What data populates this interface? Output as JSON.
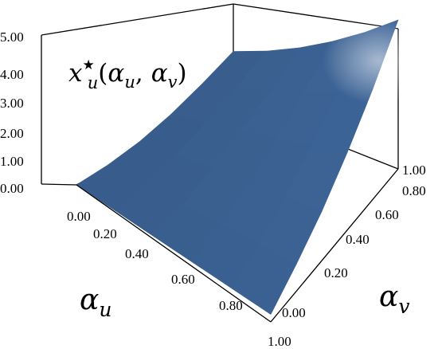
{
  "chart_data": {
    "type": "surface",
    "title": "x_u*(α_u, α_v)",
    "title_parts": {
      "main": "x",
      "sub": "u",
      "sup": "★",
      "paren_open": "(",
      "arg1": "α",
      "arg1_sub": "u",
      "comma": ",",
      "arg2": "α",
      "arg2_sub": "v",
      "paren_close": ")"
    },
    "xlabel": {
      "main": "α",
      "sub": "u"
    },
    "ylabel": {
      "main": "α",
      "sub": "v"
    },
    "xlim": [
      0,
      1
    ],
    "ylim": [
      0,
      1
    ],
    "zlim": [
      0,
      5
    ],
    "x_ticks": [
      "0.00",
      "0.20",
      "0.40",
      "0.60",
      "0.80",
      "1.00"
    ],
    "y_ticks": [
      "0.00",
      "0.20",
      "0.40",
      "0.60",
      "0.80",
      "1.00"
    ],
    "z_ticks": [
      "0.00",
      "1.00",
      "2.00",
      "3.00",
      "4.00",
      "5.00"
    ],
    "x_tick_values": [
      0,
      0.2,
      0.4,
      0.6,
      0.8,
      1.0
    ],
    "y_tick_values": [
      0,
      0.2,
      0.4,
      0.6,
      0.8,
      1.0
    ],
    "z_tick_values": [
      0,
      1,
      2,
      3,
      4,
      5
    ],
    "surface": {
      "x": [
        0,
        0.2,
        0.4,
        0.6,
        0.8,
        1.0
      ],
      "y": [
        0,
        0.2,
        0.4,
        0.6,
        0.8,
        1.0
      ],
      "z": [
        [
          0.0,
          0.12,
          0.35,
          0.72,
          1.2,
          1.75
        ],
        [
          0.05,
          0.3,
          0.65,
          1.1,
          1.6,
          2.2
        ],
        [
          0.1,
          0.45,
          0.9,
          1.45,
          2.05,
          2.75
        ],
        [
          0.15,
          0.6,
          1.15,
          1.8,
          2.55,
          3.4
        ],
        [
          0.2,
          0.75,
          1.4,
          2.2,
          3.1,
          4.15
        ],
        [
          0.25,
          0.9,
          1.65,
          2.6,
          3.7,
          5.0
        ]
      ]
    },
    "colors": {
      "surface": "#3d6598",
      "highlight": "#9aaec8",
      "frame": "#000000"
    }
  }
}
